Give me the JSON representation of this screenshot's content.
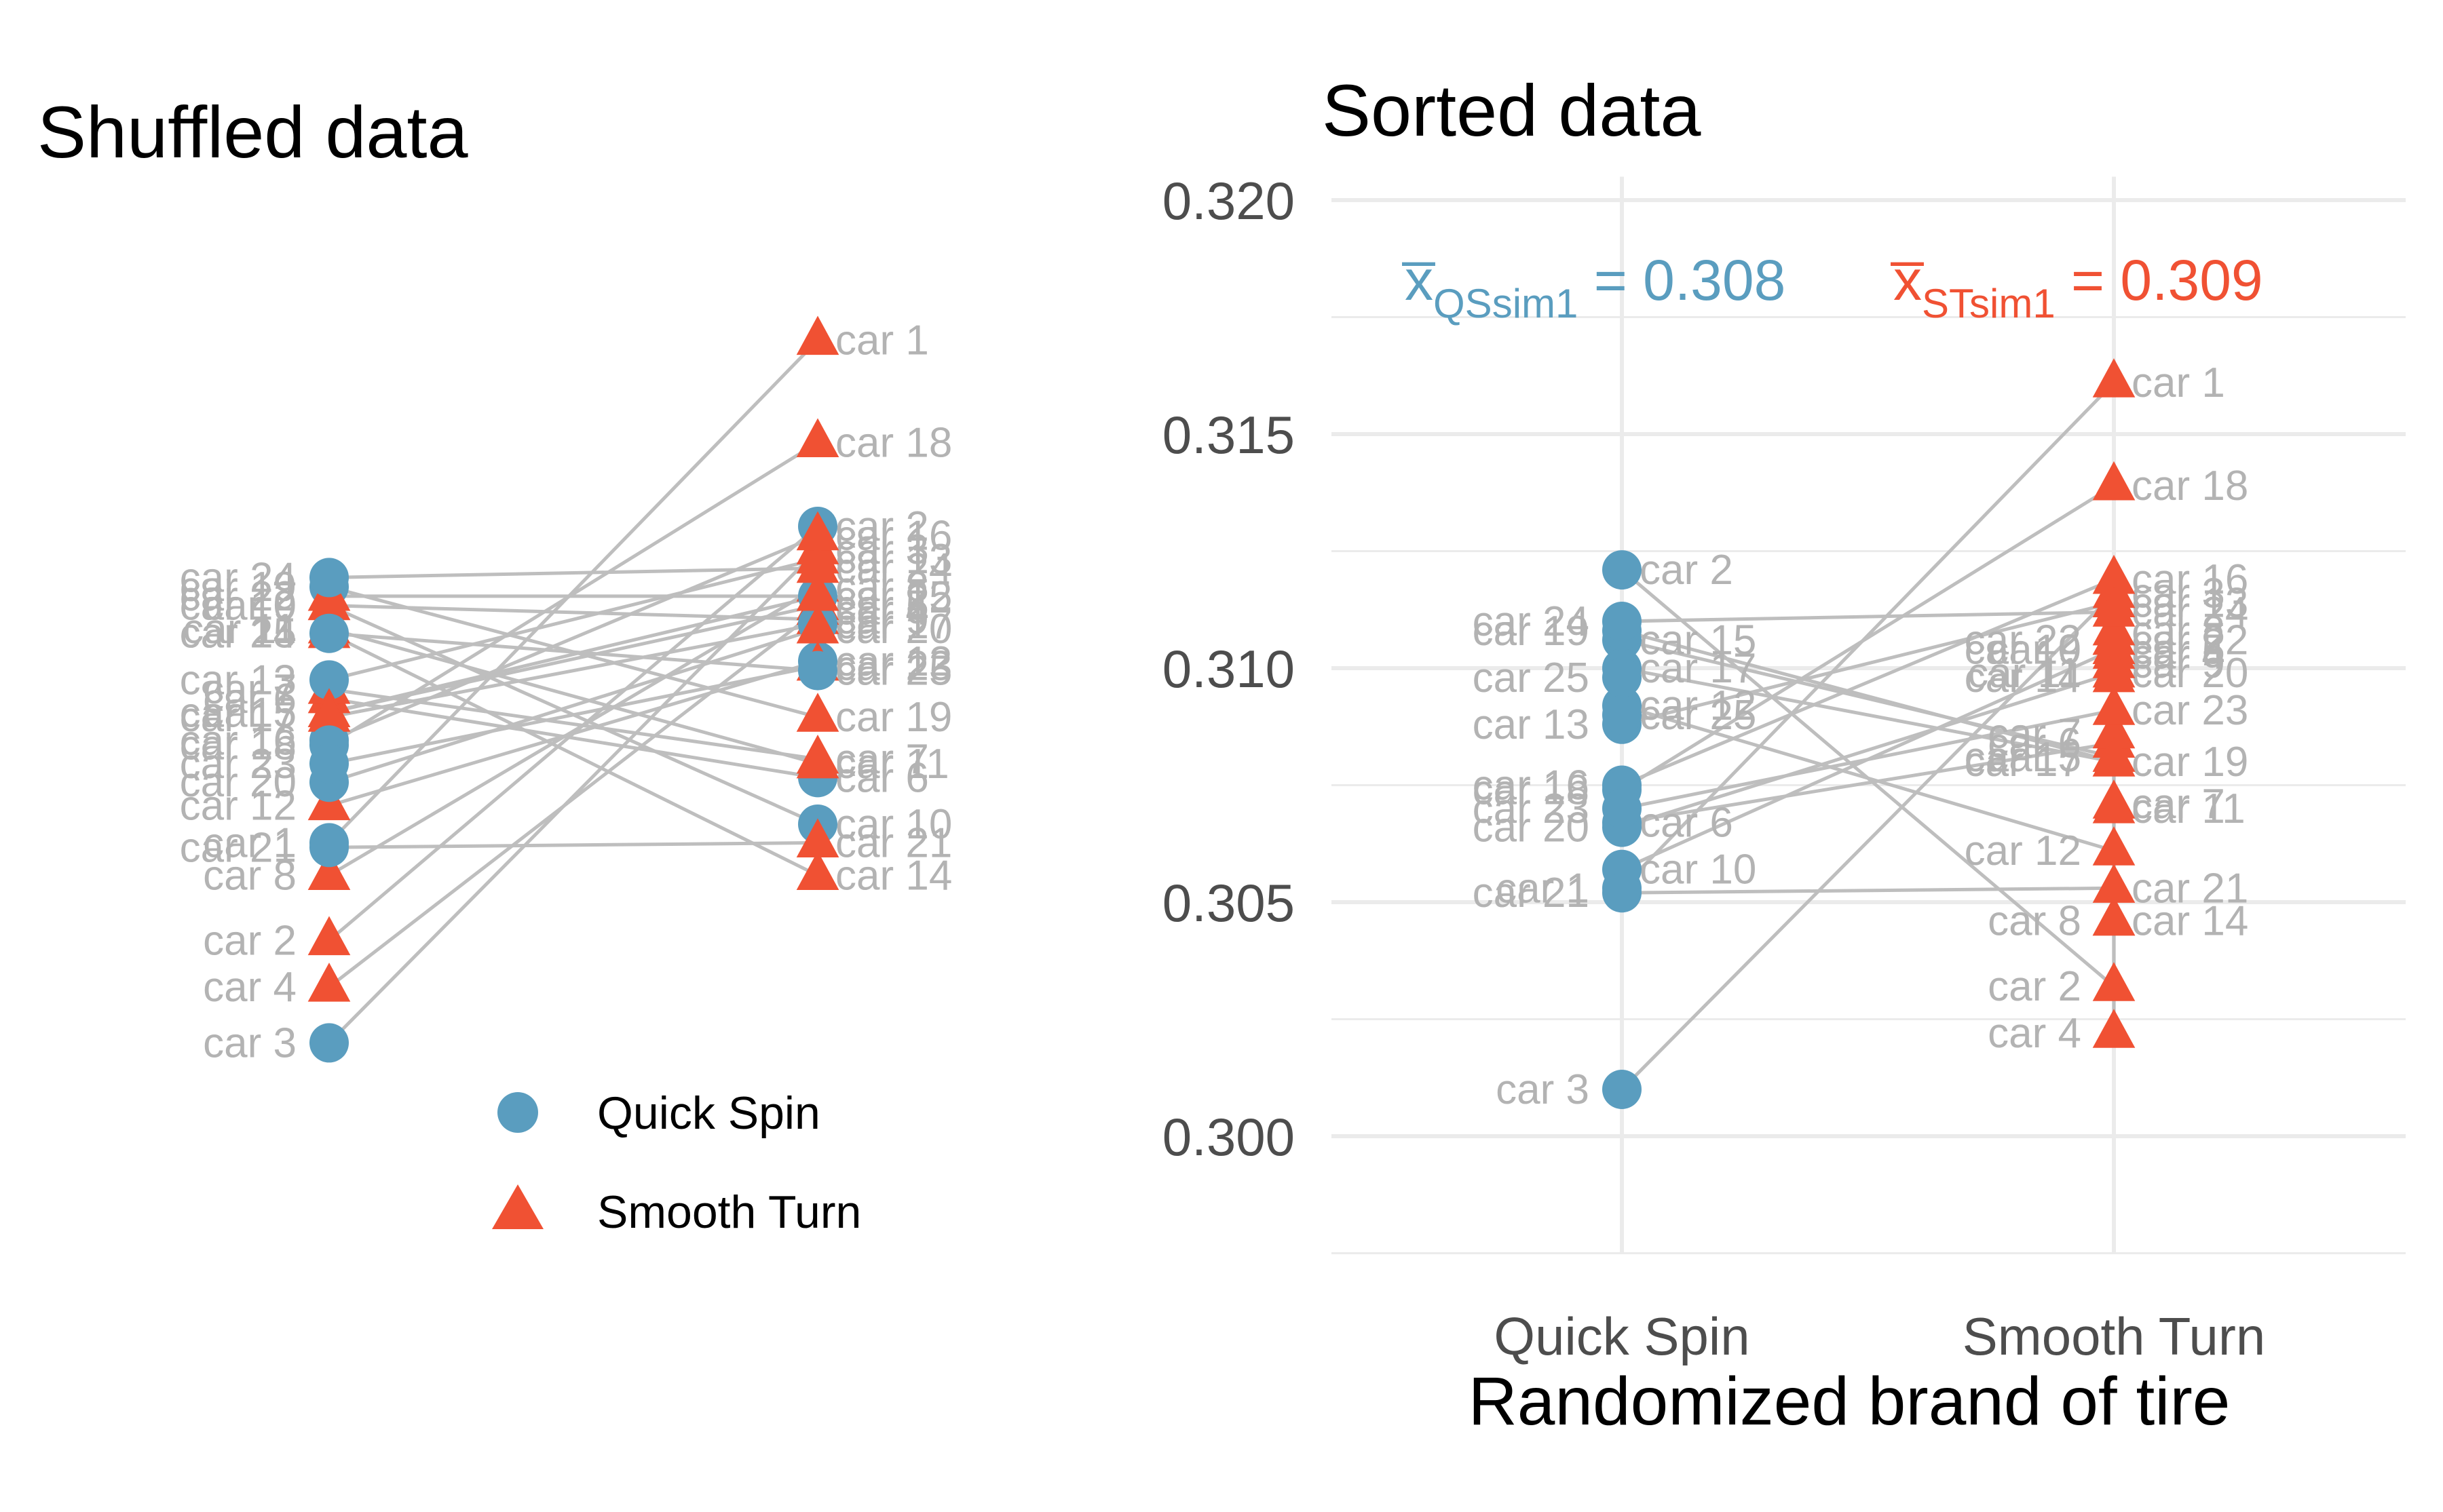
{
  "colors": {
    "quick_spin": "#5a9dbf",
    "smooth_turn": "#f05133",
    "pair_line": "#bebebe",
    "car_label": "#b3b3b3",
    "grid": "#ebebeb",
    "tick_text": "#4d4d4d"
  },
  "legend": {
    "items": [
      {
        "label": "Quick Spin",
        "shape": "circle"
      },
      {
        "label": "Smooth Turn",
        "shape": "triangle"
      }
    ]
  },
  "means": {
    "qs": {
      "sub": "QSsim1",
      "value_text": " = 0.308"
    },
    "st": {
      "sub": "STsim1",
      "value_text": " = 0.309"
    }
  },
  "chart_data": [
    {
      "type": "scatter",
      "title": "Shuffled data",
      "xlabel": "",
      "ylabel": "",
      "ylim": [
        0.298,
        0.32
      ],
      "axes_visible": false,
      "grid": false,
      "legend_placement": "bottom",
      "pairs": [
        {
          "car": "car 1",
          "left_brand": "Quick Spin",
          "left": 0.3053,
          "right_brand": "Smooth Turn",
          "right": 0.3161
        },
        {
          "car": "car 2",
          "left_brand": "Smooth Turn",
          "left": 0.3032,
          "right_brand": "Quick Spin",
          "right": 0.3121
        },
        {
          "car": "car 3",
          "left_brand": "Quick Spin",
          "left": 0.301,
          "right_brand": "Smooth Turn",
          "right": 0.3116
        },
        {
          "car": "car 4",
          "left_brand": "Smooth Turn",
          "left": 0.3022,
          "right_brand": "Smooth Turn",
          "right": 0.3103
        },
        {
          "car": "car 5",
          "left_brand": "Smooth Turn",
          "left": 0.3081,
          "right_brand": "Smooth Turn",
          "right": 0.3104
        },
        {
          "car": "car 6",
          "left_brand": "Smooth Turn",
          "left": 0.3084,
          "right_brand": "Quick Spin",
          "right": 0.3067
        },
        {
          "car": "car 7",
          "left_brand": "Smooth Turn",
          "left": 0.3086,
          "right_brand": "Smooth Turn",
          "right": 0.3071
        },
        {
          "car": "car 8",
          "left_brand": "Smooth Turn",
          "left": 0.3046,
          "right_brand": "Smooth Turn",
          "right": 0.3108
        },
        {
          "car": "car 9",
          "left_brand": "Smooth Turn",
          "left": 0.3104,
          "right_brand": "Smooth Turn",
          "right": 0.3101
        },
        {
          "car": "car 10",
          "left_brand": "Smooth Turn",
          "left": 0.3104,
          "right_brand": "Quick Spin",
          "right": 0.3057
        },
        {
          "car": "car 11",
          "left_brand": "Smooth Turn",
          "left": 0.3099,
          "right_brand": "Smooth Turn",
          "right": 0.307
        },
        {
          "car": "car 12",
          "left_brand": "Smooth Turn",
          "left": 0.3061,
          "right_brand": "Quick Spin",
          "right": 0.3092
        },
        {
          "car": "car 13",
          "left_brand": "Quick Spin",
          "left": 0.3088,
          "right_brand": "Smooth Turn",
          "right": 0.3114
        },
        {
          "car": "car 14",
          "left_brand": "Smooth Turn",
          "left": 0.3098,
          "right_brand": "Smooth Turn",
          "right": 0.3046
        },
        {
          "car": "car 15",
          "left_brand": "Smooth Turn",
          "left": 0.3081,
          "right_brand": "Quick Spin",
          "right": 0.3106
        },
        {
          "car": "car 16",
          "left_brand": "Quick Spin",
          "left": 0.3075,
          "right_brand": "Smooth Turn",
          "right": 0.3119
        },
        {
          "car": "car 17",
          "left_brand": "Smooth Turn",
          "left": 0.308,
          "right_brand": "Quick Spin",
          "right": 0.31
        },
        {
          "car": "car 18",
          "left_brand": "Quick Spin",
          "left": 0.3074,
          "right_brand": "Smooth Turn",
          "right": 0.3139
        },
        {
          "car": "car 19",
          "left_brand": "Quick Spin",
          "left": 0.3108,
          "right_brand": "Smooth Turn",
          "right": 0.308
        },
        {
          "car": "car 20",
          "left_brand": "Quick Spin",
          "left": 0.3066,
          "right_brand": "Smooth Turn",
          "right": 0.3099
        },
        {
          "car": "car 21",
          "left_brand": "Quick Spin",
          "left": 0.3052,
          "right_brand": "Smooth Turn",
          "right": 0.3053
        },
        {
          "car": "car 22",
          "left_brand": "Smooth Turn",
          "left": 0.3106,
          "right_brand": "Smooth Turn",
          "right": 0.3106
        },
        {
          "car": "car 23",
          "left_brand": "Quick Spin",
          "left": 0.307,
          "right_brand": "Smooth Turn",
          "right": 0.3091
        },
        {
          "car": "car 24",
          "left_brand": "Quick Spin",
          "left": 0.311,
          "right_brand": "Smooth Turn",
          "right": 0.3112
        },
        {
          "car": "car 25",
          "left_brand": "Quick Spin",
          "left": 0.3098,
          "right_brand": "Quick Spin",
          "right": 0.309
        }
      ]
    },
    {
      "type": "scatter",
      "title": "Sorted data",
      "xlabel": "Randomized brand of tire",
      "ylabel": "",
      "categories": [
        "Quick Spin",
        "Smooth Turn"
      ],
      "ylim": [
        0.2975,
        0.3205
      ],
      "yticks": [
        "0.300",
        "0.305",
        "0.310",
        "0.315",
        "0.320"
      ],
      "grid": true,
      "means": {
        "Quick Spin": 0.308,
        "Smooth Turn": 0.309
      },
      "uses_pairs_from_shuffled": true
    }
  ]
}
